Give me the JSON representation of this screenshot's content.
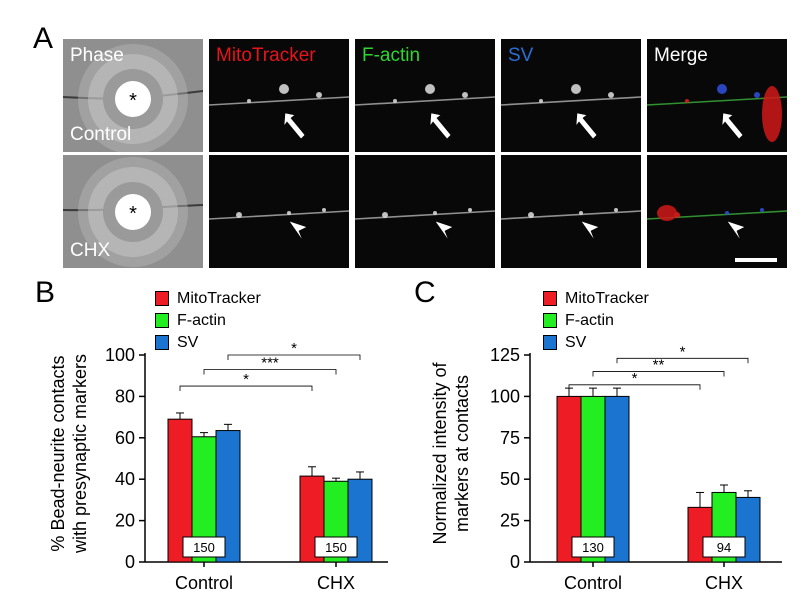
{
  "panel_a": {
    "letter": "A",
    "column_labels": [
      "Phase",
      "MitoTracker",
      "F-actin",
      "SV",
      "Merge"
    ],
    "column_colors": [
      "#ffffff",
      "#e8141b",
      "#2fd62f",
      "#2a6fd6",
      "#ffffff"
    ],
    "row_labels": [
      "Control",
      "CHX"
    ],
    "bead_marker": "*",
    "control_pointer": "arrow-icon",
    "chx_pointer": "arrowhead-icon"
  },
  "legend": {
    "items": [
      {
        "label": "MitoTracker",
        "color": "#ee1c24"
      },
      {
        "label": "F-actin",
        "color": "#22ee22"
      },
      {
        "label": "SV",
        "color": "#1b75d0"
      }
    ]
  },
  "chart_data": [
    {
      "letter": "B",
      "type": "bar",
      "ylabel_lines": [
        "% Bead-neurite contacts",
        "with presynaptic markers"
      ],
      "ylim": [
        0,
        100
      ],
      "yticks": [
        0,
        20,
        40,
        60,
        80,
        100
      ],
      "categories": [
        "Control",
        "CHX"
      ],
      "n_labels": [
        "150",
        "150"
      ],
      "series": [
        {
          "name": "MitoTracker",
          "color": "#ee1c24",
          "values": [
            69,
            41.5
          ],
          "errors": [
            3,
            4.5
          ]
        },
        {
          "name": "F-actin",
          "color": "#22ee22",
          "values": [
            60.5,
            39
          ],
          "errors": [
            2,
            1.5
          ]
        },
        {
          "name": "SV",
          "color": "#1b75d0",
          "values": [
            63.5,
            40
          ],
          "errors": [
            3,
            3.5
          ]
        }
      ],
      "significance": [
        {
          "from_series": 0,
          "label": "*",
          "level": 85
        },
        {
          "from_series": 1,
          "label": "***",
          "level": 93
        },
        {
          "from_series": 2,
          "label": "*",
          "level": 100
        }
      ]
    },
    {
      "letter": "C",
      "type": "bar",
      "ylabel_lines": [
        "Normalized intensity of",
        "markers at contacts"
      ],
      "ylim": [
        0,
        125
      ],
      "yticks": [
        0,
        25,
        50,
        75,
        100,
        125
      ],
      "categories": [
        "Control",
        "CHX"
      ],
      "n_labels": [
        "130",
        "94"
      ],
      "series": [
        {
          "name": "MitoTracker",
          "color": "#ee1c24",
          "values": [
            100,
            33
          ],
          "errors": [
            5,
            9
          ]
        },
        {
          "name": "F-actin",
          "color": "#22ee22",
          "values": [
            100,
            42
          ],
          "errors": [
            5,
            4.5
          ]
        },
        {
          "name": "SV",
          "color": "#1b75d0",
          "values": [
            100,
            39
          ],
          "errors": [
            5,
            4
          ]
        }
      ],
      "significance": [
        {
          "from_series": 0,
          "label": "*",
          "level": 107
        },
        {
          "from_series": 1,
          "label": "**",
          "level": 115
        },
        {
          "from_series": 2,
          "label": "*",
          "level": 123
        }
      ]
    }
  ]
}
